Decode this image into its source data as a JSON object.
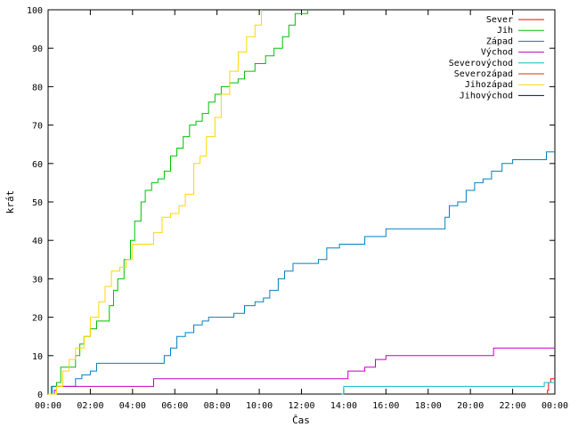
{
  "chart_data": {
    "type": "line",
    "title": "",
    "xlabel": "Čas",
    "ylabel": "krát",
    "xlim": [
      0,
      24
    ],
    "ylim": [
      0,
      100
    ],
    "grid": false,
    "legend_position": "top-right",
    "x_tick_labels": [
      "00:00",
      "02:00",
      "04:00",
      "06:00",
      "08:00",
      "10:00",
      "12:00",
      "14:00",
      "16:00",
      "18:00",
      "20:00",
      "22:00",
      "00:00"
    ],
    "y_tick_labels": [
      "0",
      "10",
      "20",
      "30",
      "40",
      "50",
      "60",
      "70",
      "80",
      "90",
      "100"
    ],
    "series": [
      {
        "name": "Sever",
        "color": "#ff0000",
        "points": [
          [
            23.6,
            0
          ],
          [
            23.65,
            1
          ],
          [
            23.7,
            3
          ],
          [
            23.8,
            4
          ],
          [
            24,
            4
          ]
        ]
      },
      {
        "name": "Jih",
        "color": "#00c000",
        "points": [
          [
            0,
            0
          ],
          [
            0.15,
            2
          ],
          [
            0.4,
            3
          ],
          [
            0.6,
            7
          ],
          [
            1.2,
            7
          ],
          [
            1.3,
            10
          ],
          [
            1.5,
            13
          ],
          [
            1.7,
            15
          ],
          [
            2.0,
            17
          ],
          [
            2.3,
            19
          ],
          [
            2.7,
            19
          ],
          [
            2.9,
            23
          ],
          [
            3.1,
            27
          ],
          [
            3.3,
            30
          ],
          [
            3.6,
            35
          ],
          [
            3.9,
            40
          ],
          [
            4.1,
            45
          ],
          [
            4.4,
            50
          ],
          [
            4.6,
            53
          ],
          [
            4.9,
            55
          ],
          [
            5.2,
            56
          ],
          [
            5.5,
            58
          ],
          [
            5.8,
            62
          ],
          [
            6.1,
            64
          ],
          [
            6.4,
            67
          ],
          [
            6.7,
            70
          ],
          [
            7.0,
            71
          ],
          [
            7.3,
            73
          ],
          [
            7.6,
            76
          ],
          [
            7.9,
            78
          ],
          [
            8.2,
            80
          ],
          [
            8.6,
            81
          ],
          [
            9.0,
            82
          ],
          [
            9.3,
            84
          ],
          [
            9.8,
            86
          ],
          [
            10.3,
            88
          ],
          [
            10.7,
            90
          ],
          [
            11.1,
            93
          ],
          [
            11.4,
            96
          ],
          [
            11.7,
            99
          ],
          [
            12.0,
            99
          ],
          [
            12.3,
            100
          ]
        ]
      },
      {
        "name": "Západ",
        "color": "#0080c0",
        "points": [
          [
            0,
            0
          ],
          [
            0.2,
            2
          ],
          [
            0.5,
            2
          ],
          [
            1.1,
            2
          ],
          [
            1.3,
            4
          ],
          [
            1.6,
            5
          ],
          [
            2.0,
            6
          ],
          [
            2.3,
            8
          ],
          [
            3.0,
            8
          ],
          [
            4.0,
            8
          ],
          [
            5.3,
            8
          ],
          [
            5.5,
            10
          ],
          [
            5.8,
            12
          ],
          [
            6.1,
            15
          ],
          [
            6.5,
            16
          ],
          [
            6.9,
            18
          ],
          [
            7.3,
            19
          ],
          [
            7.6,
            20
          ],
          [
            8.2,
            20
          ],
          [
            8.8,
            21
          ],
          [
            9.3,
            23
          ],
          [
            9.8,
            24
          ],
          [
            10.2,
            25
          ],
          [
            10.5,
            27
          ],
          [
            10.9,
            30
          ],
          [
            11.2,
            32
          ],
          [
            11.6,
            34
          ],
          [
            12.4,
            34
          ],
          [
            12.8,
            35
          ],
          [
            13.2,
            38
          ],
          [
            13.8,
            39
          ],
          [
            14.5,
            39
          ],
          [
            15.0,
            41
          ],
          [
            15.8,
            41
          ],
          [
            16.0,
            43
          ],
          [
            18.6,
            43
          ],
          [
            18.8,
            46
          ],
          [
            19.0,
            49
          ],
          [
            19.4,
            50
          ],
          [
            19.8,
            53
          ],
          [
            20.2,
            55
          ],
          [
            20.6,
            56
          ],
          [
            21.0,
            58
          ],
          [
            21.5,
            60
          ],
          [
            22.0,
            61
          ],
          [
            23.0,
            61
          ],
          [
            23.6,
            63
          ],
          [
            24,
            63
          ]
        ]
      },
      {
        "name": "Východ",
        "color": "#c000c0",
        "points": [
          [
            0,
            0
          ],
          [
            0.3,
            1
          ],
          [
            0.4,
            2
          ],
          [
            3.0,
            2
          ],
          [
            4.9,
            2
          ],
          [
            5.0,
            4
          ],
          [
            9.0,
            4
          ],
          [
            14.1,
            4
          ],
          [
            14.2,
            6
          ],
          [
            15.0,
            7
          ],
          [
            15.5,
            9
          ],
          [
            16.0,
            10
          ],
          [
            18.0,
            10
          ],
          [
            21.0,
            10
          ],
          [
            21.1,
            12
          ],
          [
            24,
            12
          ]
        ]
      },
      {
        "name": "Severovýchod",
        "color": "#00c0c0",
        "points": [
          [
            13.9,
            0
          ],
          [
            14.0,
            2
          ],
          [
            20.0,
            2
          ],
          [
            23.4,
            2
          ],
          [
            23.5,
            3
          ],
          [
            24,
            3
          ]
        ]
      },
      {
        "name": "Severozápad",
        "color": "#c04000",
        "points": []
      },
      {
        "name": "Jihozápad",
        "color": "#ffd700",
        "points": [
          [
            0,
            0
          ],
          [
            0.4,
            2
          ],
          [
            0.7,
            6
          ],
          [
            1.0,
            9
          ],
          [
            1.3,
            12
          ],
          [
            1.7,
            15
          ],
          [
            2.0,
            20
          ],
          [
            2.4,
            24
          ],
          [
            2.7,
            28
          ],
          [
            3.0,
            32
          ],
          [
            3.4,
            33
          ],
          [
            3.7,
            35
          ],
          [
            4.0,
            39
          ],
          [
            4.6,
            39
          ],
          [
            5.0,
            42
          ],
          [
            5.4,
            46
          ],
          [
            5.8,
            47
          ],
          [
            6.2,
            49
          ],
          [
            6.5,
            52
          ],
          [
            6.9,
            60
          ],
          [
            7.2,
            62
          ],
          [
            7.5,
            67
          ],
          [
            7.9,
            72
          ],
          [
            8.2,
            78
          ],
          [
            8.6,
            84
          ],
          [
            9.0,
            89
          ],
          [
            9.4,
            93
          ],
          [
            9.8,
            96
          ],
          [
            10.1,
            100
          ]
        ]
      },
      {
        "name": "Jihovýchod",
        "color": "#000080",
        "points": []
      }
    ]
  }
}
